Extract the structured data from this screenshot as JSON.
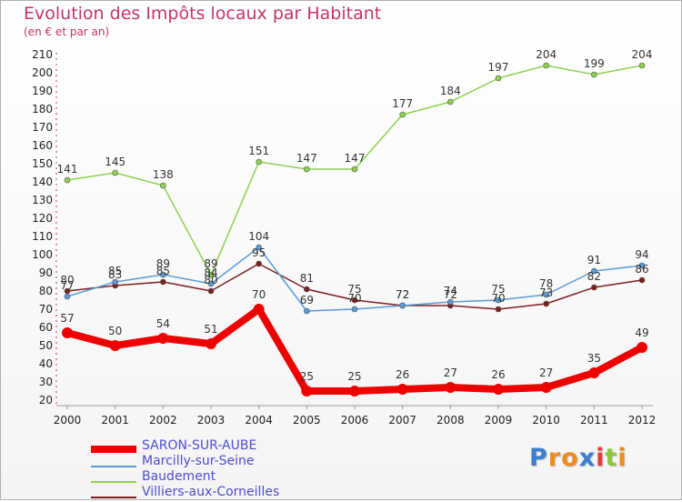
{
  "chart_data": {
    "type": "line",
    "title": "Evolution des Impôts locaux par Habitant",
    "subtitle": "(en € et par an)",
    "x": [
      "2000",
      "2001",
      "2002",
      "2003",
      "2004",
      "2005",
      "2006",
      "2007",
      "2008",
      "2009",
      "2010",
      "2011",
      "2012"
    ],
    "ylim": [
      20,
      210
    ],
    "yticks": [
      20,
      30,
      40,
      50,
      60,
      70,
      80,
      90,
      100,
      110,
      120,
      130,
      140,
      150,
      160,
      170,
      180,
      190,
      200,
      210
    ],
    "grid": false,
    "legend_position": "bottom-left",
    "series": [
      {
        "name": "SARON-SUR-AUBE",
        "color": "#ee0000",
        "values": [
          57,
          50,
          54,
          51,
          70,
          25,
          25,
          26,
          27,
          26,
          27,
          35,
          49
        ]
      },
      {
        "name": "Marcilly-sur-Seine",
        "color": "#5b9bd5",
        "values": [
          77,
          85,
          89,
          84,
          104,
          69,
          70,
          72,
          74,
          75,
          78,
          91,
          94
        ]
      },
      {
        "name": "Baudement",
        "color": "#8fd14f",
        "values": [
          141,
          145,
          138,
          89,
          151,
          147,
          147,
          177,
          184,
          197,
          204,
          199,
          204
        ]
      },
      {
        "name": "Villiers-aux-Corneilles",
        "color": "#7b2020",
        "values": [
          80,
          83,
          85,
          80,
          95,
          81,
          75,
          72,
          72,
          70,
          73,
          82,
          86
        ]
      }
    ]
  },
  "logo": {
    "letters": [
      "P",
      "r",
      "o",
      "x",
      "i",
      "t",
      "i"
    ],
    "colors": [
      "#3a7fd0",
      "#f08a1c",
      "#f08a1c",
      "#3a7fd0",
      "#e23c3c",
      "#8fc63c",
      "#f08a1c"
    ]
  }
}
